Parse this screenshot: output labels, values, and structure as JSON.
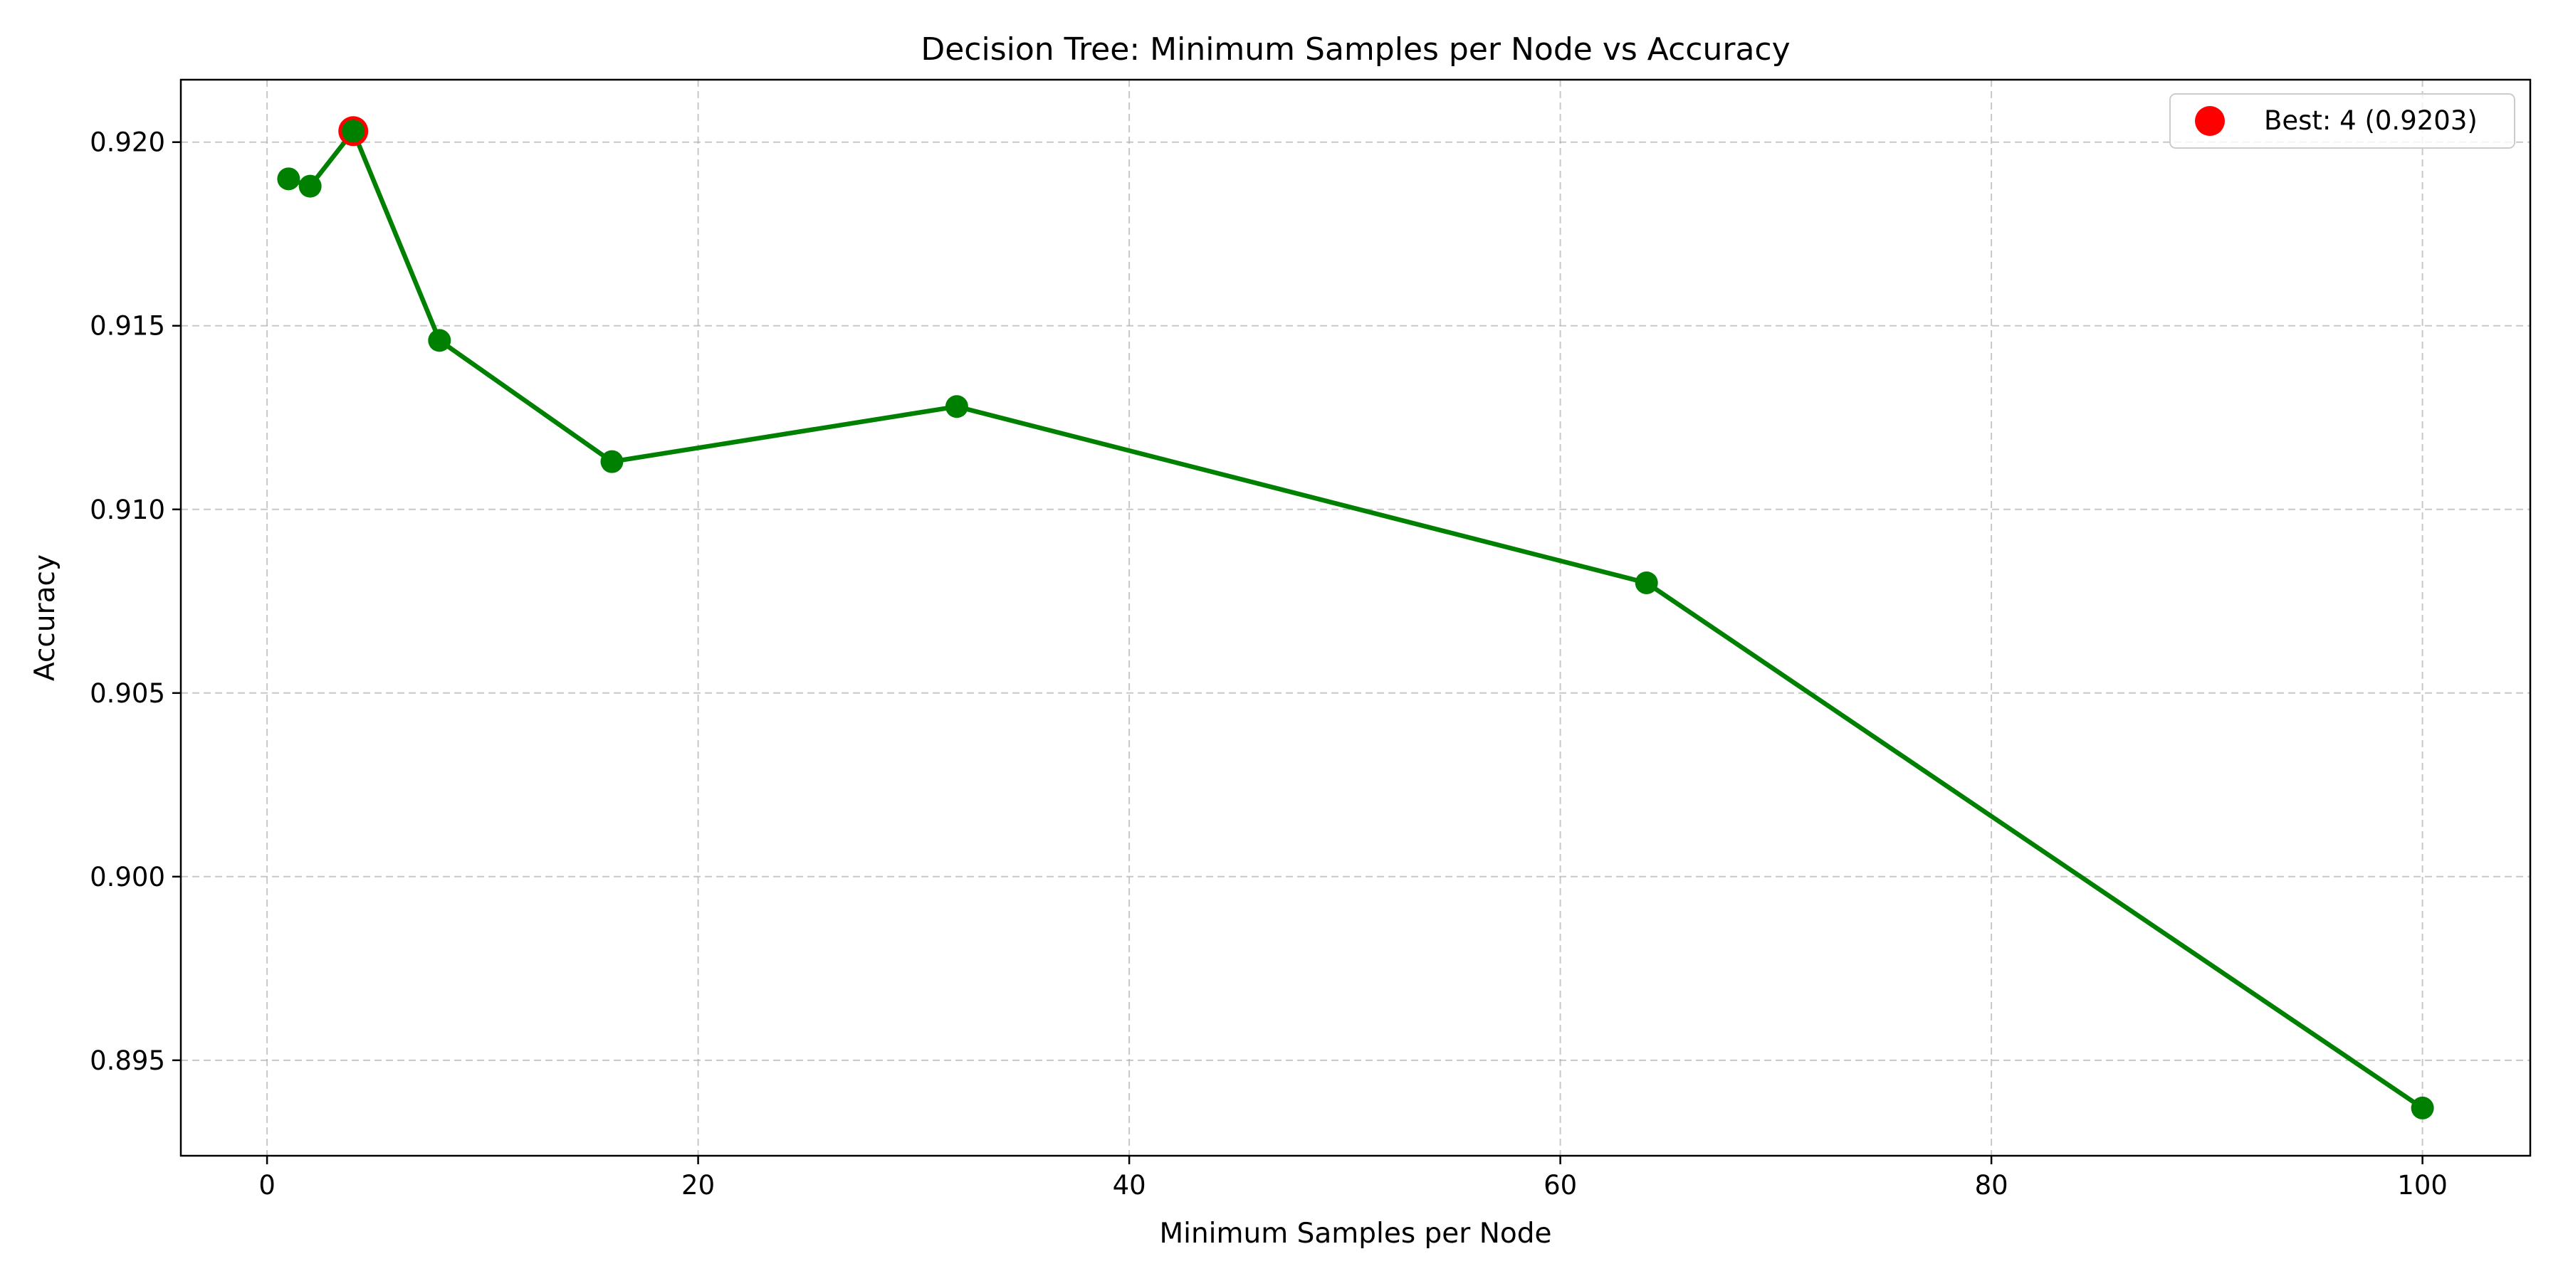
{
  "chart_data": {
    "type": "line",
    "title": "Decision Tree: Minimum Samples per Node vs Accuracy",
    "xlabel": "Minimum Samples per Node",
    "ylabel": "Accuracy",
    "xlim": [
      -4,
      105
    ],
    "ylim": [
      0.8924,
      0.9217
    ],
    "xticks": [
      0,
      20,
      40,
      60,
      80,
      100
    ],
    "xtick_labels": [
      "0",
      "20",
      "40",
      "60",
      "80",
      "100"
    ],
    "yticks": [
      0.895,
      0.9,
      0.905,
      0.91,
      0.915,
      0.92
    ],
    "ytick_labels": [
      "0.895",
      "0.900",
      "0.905",
      "0.910",
      "0.915",
      "0.920"
    ],
    "grid": true,
    "legend_position": "top-right",
    "series": [
      {
        "name": "",
        "color": "#008000",
        "x": [
          1,
          2,
          4,
          8,
          16,
          32,
          64,
          100
        ],
        "y": [
          0.919,
          0.9188,
          0.9203,
          0.9146,
          0.9113,
          0.9128,
          0.908,
          0.8937
        ]
      }
    ],
    "highlight": {
      "label": "Best: 4 (0.9203)",
      "x": 4,
      "y": 0.9203,
      "color": "#ff0000"
    }
  }
}
